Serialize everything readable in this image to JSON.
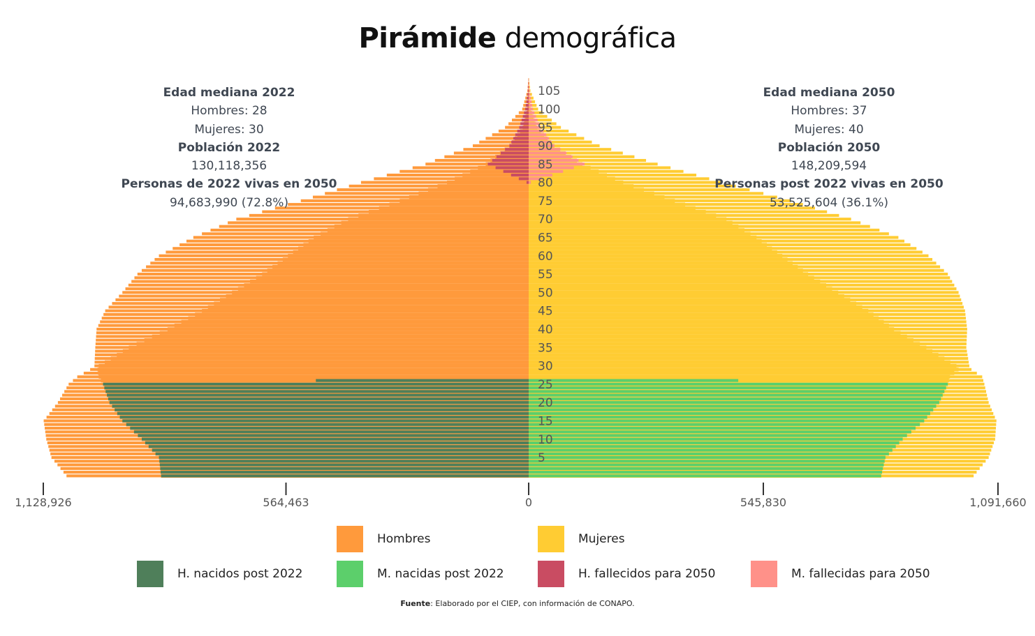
{
  "title_bold": "Pirámide",
  "title_rest": "demográfica",
  "stats_left": {
    "heading": "Edad mediana 2022",
    "men": "Hombres: 28",
    "women": "Mujeres: 30",
    "pop_heading": "Población 2022",
    "pop_value": "130,118,356",
    "alive_heading": "Personas de 2022 vivas en 2050",
    "alive_value": "94,683,990 (72.8%)"
  },
  "stats_right": {
    "heading": "Edad mediana 2050",
    "men": "Hombres: 37",
    "women": "Mujeres: 40",
    "pop_heading": "Población 2050",
    "pop_value": "148,209,594",
    "alive_heading": "Personas post 2022 vivas en 2050",
    "alive_value": "53,525,604 (36.1%)"
  },
  "legend": [
    {
      "label": "Hombres",
      "color": "#ff9a3c"
    },
    {
      "label": "Mujeres",
      "color": "#ffcc33"
    },
    {
      "label": "H. nacidos post 2022",
      "color": "#4f7f5a"
    },
    {
      "label": "M. nacidas post 2022",
      "color": "#5ccf6b"
    },
    {
      "label": "H. fallecidos para 2050",
      "color": "#c94c62"
    },
    {
      "label": "M. fallecidas para 2050",
      "color": "#ff9189"
    }
  ],
  "source_bold": "Fuente",
  "source_rest": ": Elaborado por el CIEP, con información de CONAPO.",
  "chart_data": {
    "type": "bar",
    "orientation": "horizontal-pyramid",
    "age_ticks": [
      "5",
      "10",
      "15",
      "20",
      "25",
      "30",
      "35",
      "40",
      "45",
      "50",
      "55",
      "60",
      "65",
      "70",
      "75",
      "80",
      "85",
      "90",
      "95",
      "100",
      "105"
    ],
    "x_ticks_left": [
      "1,128,926",
      "564,463",
      "0"
    ],
    "x_ticks_right": [
      "545,830",
      "1,091,660"
    ],
    "xlim_left": [
      0,
      1128926
    ],
    "xlim_right": [
      0,
      1091660
    ],
    "ages": [
      0,
      109
    ],
    "series_anchor_ages": [
      0,
      5,
      10,
      15,
      20,
      25,
      27,
      29,
      30,
      35,
      40,
      45,
      50,
      55,
      60,
      65,
      70,
      75,
      80,
      85,
      90,
      95,
      100,
      105,
      109
    ],
    "series": [
      {
        "name": "Hombres 2022",
        "values": [
          1075000,
          1110000,
          1122000,
          1128000,
          1095000,
          1070000,
          1050000,
          1020000,
          1010000,
          1008000,
          1005000,
          985000,
          945000,
          910000,
          860000,
          780000,
          680000,
          530000,
          390000,
          240000,
          130000,
          55000,
          15000,
          3000,
          0
        ]
      },
      {
        "name": "Hombres 2050",
        "values": [
          855000,
          860000,
          900000,
          945000,
          975000,
          990000,
          1000000,
          1003000,
          1000000,
          930000,
          840000,
          760000,
          690000,
          620000,
          560000,
          500000,
          420000,
          300000,
          190000,
          100000,
          45000,
          14000,
          3000,
          500,
          0
        ]
      },
      {
        "name": "H. nacidos post 2022",
        "values": [
          855000,
          860000,
          900000,
          945000,
          975000,
          990000,
          0,
          0,
          0,
          0,
          0,
          0,
          0,
          0,
          0,
          0,
          0,
          0,
          0,
          0,
          0,
          0,
          0,
          0,
          0
        ]
      },
      {
        "name": "H. fallecidos para 2050",
        "values": [
          0,
          0,
          0,
          0,
          0,
          0,
          0,
          0,
          0,
          0,
          0,
          0,
          0,
          0,
          0,
          0,
          0,
          0,
          5000,
          95000,
          45000,
          22000,
          8000,
          1500,
          0
        ]
      },
      {
        "name": "Mujeres 2022",
        "values": [
          1035000,
          1070000,
          1085000,
          1088000,
          1070000,
          1060000,
          1055000,
          1030000,
          1025000,
          1018000,
          1020000,
          1015000,
          1000000,
          975000,
          930000,
          860000,
          750000,
          610000,
          450000,
          300000,
          165000,
          75000,
          22000,
          4000,
          0
        ]
      },
      {
        "name": "Mujeres 2050",
        "values": [
          820000,
          830000,
          870000,
          920000,
          955000,
          975000,
          980000,
          1000000,
          995000,
          925000,
          850000,
          790000,
          720000,
          650000,
          590000,
          530000,
          460000,
          340000,
          220000,
          125000,
          60000,
          20000,
          4500,
          800,
          0
        ]
      },
      {
        "name": "M. nacidas post 2022",
        "values": [
          820000,
          830000,
          870000,
          920000,
          955000,
          975000,
          0,
          0,
          0,
          0,
          0,
          0,
          0,
          0,
          0,
          0,
          0,
          0,
          0,
          0,
          0,
          0,
          0,
          0,
          0
        ]
      },
      {
        "name": "M. fallecidas para 2050",
        "values": [
          0,
          0,
          0,
          0,
          0,
          0,
          0,
          0,
          0,
          0,
          0,
          0,
          0,
          0,
          0,
          0,
          0,
          0,
          5000,
          130000,
          60000,
          28000,
          10000,
          2000,
          0
        ]
      }
    ]
  }
}
